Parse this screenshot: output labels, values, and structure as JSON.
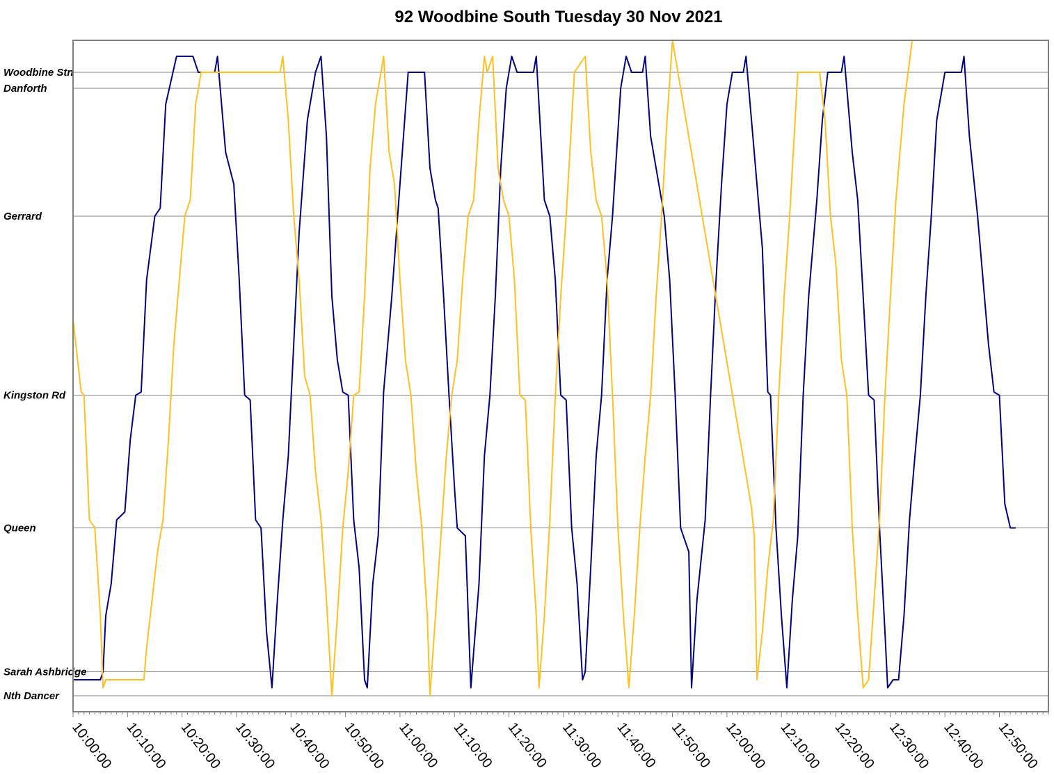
{
  "chart_data": {
    "type": "line",
    "title": "92 Woodbine South Tuesday 30 Nov 2021",
    "x_unit": "time of day",
    "xlim": [
      "10:00:00",
      "12:59:00"
    ],
    "x_ticks": [
      "10:00:00",
      "10:10:00",
      "10:20:00",
      "10:30:00",
      "10:40:00",
      "10:50:00",
      "11:00:00",
      "11:10:00",
      "11:20:00",
      "11:30:00",
      "11:40:00",
      "11:50:00",
      "12:00:00",
      "12:10:00",
      "12:20:00",
      "12:30:00",
      "12:40:00",
      "12:50:00"
    ],
    "y_ticks": [
      {
        "label": "Woodbine Stn",
        "value": 3.9
      },
      {
        "label": "Danforth",
        "value": 3.8
      },
      {
        "label": "Gerrard",
        "value": 3.0
      },
      {
        "label": "Kingston Rd",
        "value": 1.88
      },
      {
        "label": "Queen",
        "value": 1.05
      },
      {
        "label": "Sarah Ashbridge",
        "value": 0.15
      },
      {
        "label": "Nth Dancer",
        "value": 0.0
      }
    ],
    "ylim": [
      -0.1,
      4.1
    ],
    "grid": true,
    "legend": "none",
    "series": [
      {
        "color": "#000080",
        "points": [
          [
            "10:00:00",
            0.1
          ],
          [
            "10:05:00",
            0.1
          ],
          [
            "10:05:30",
            0.15
          ],
          [
            "10:06:00",
            0.5
          ],
          [
            "10:07:00",
            0.7
          ],
          [
            "10:08:00",
            1.1
          ],
          [
            "10:09:30",
            1.15
          ],
          [
            "10:10:30",
            1.6
          ],
          [
            "10:11:30",
            1.88
          ],
          [
            "10:12:30",
            1.9
          ],
          [
            "10:13:30",
            2.6
          ],
          [
            "10:15:00",
            3.0
          ],
          [
            "10:16:00",
            3.05
          ],
          [
            "10:17:00",
            3.7
          ],
          [
            "10:19:00",
            4.0
          ],
          [
            "10:22:00",
            4.0
          ],
          [
            "10:23:00",
            3.9
          ],
          [
            "10:26:00",
            3.9
          ],
          [
            "10:26:30",
            4.0
          ],
          [
            "10:28:00",
            3.4
          ],
          [
            "10:29:30",
            3.2
          ],
          [
            "10:30:30",
            2.6
          ],
          [
            "10:31:30",
            1.88
          ],
          [
            "10:32:30",
            1.85
          ],
          [
            "10:33:30",
            1.1
          ],
          [
            "10:34:30",
            1.05
          ],
          [
            "10:35:30",
            0.4
          ],
          [
            "10:36:30",
            0.05
          ],
          [
            "10:37:30",
            0.6
          ],
          [
            "10:38:30",
            1.1
          ],
          [
            "10:39:30",
            1.5
          ],
          [
            "10:40:30",
            2.2
          ],
          [
            "10:41:30",
            2.9
          ],
          [
            "10:43:00",
            3.6
          ],
          [
            "10:44:30",
            3.9
          ],
          [
            "10:45:30",
            4.0
          ],
          [
            "10:46:30",
            3.5
          ],
          [
            "10:47:30",
            2.5
          ],
          [
            "10:48:30",
            2.1
          ],
          [
            "10:49:30",
            1.9
          ],
          [
            "10:50:30",
            1.88
          ],
          [
            "10:51:30",
            1.1
          ],
          [
            "10:52:30",
            0.8
          ],
          [
            "10:53:30",
            0.1
          ],
          [
            "10:54:00",
            0.05
          ],
          [
            "10:55:00",
            0.7
          ],
          [
            "10:56:00",
            1.0
          ],
          [
            "10:57:00",
            1.9
          ],
          [
            "10:58:30",
            2.5
          ],
          [
            "11:00:00",
            3.2
          ],
          [
            "11:01:30",
            3.9
          ],
          [
            "11:04:30",
            3.9
          ],
          [
            "11:05:30",
            3.3
          ],
          [
            "11:06:30",
            3.1
          ],
          [
            "11:07:00",
            3.05
          ],
          [
            "11:08:00",
            2.5
          ],
          [
            "11:09:00",
            1.88
          ],
          [
            "11:10:00",
            1.3
          ],
          [
            "11:10:30",
            1.05
          ],
          [
            "11:12:00",
            1.0
          ],
          [
            "11:13:00",
            0.05
          ],
          [
            "11:14:30",
            0.7
          ],
          [
            "11:15:30",
            1.5
          ],
          [
            "11:16:30",
            1.88
          ],
          [
            "11:17:30",
            2.5
          ],
          [
            "11:18:30",
            3.3
          ],
          [
            "11:19:30",
            3.8
          ],
          [
            "11:20:30",
            4.0
          ],
          [
            "11:21:30",
            3.9
          ],
          [
            "11:24:30",
            3.9
          ],
          [
            "11:25:00",
            4.0
          ],
          [
            "11:26:30",
            3.1
          ],
          [
            "11:27:30",
            3.0
          ],
          [
            "11:28:30",
            2.6
          ],
          [
            "11:29:30",
            1.88
          ],
          [
            "11:30:30",
            1.85
          ],
          [
            "11:31:30",
            1.05
          ],
          [
            "11:32:30",
            0.7
          ],
          [
            "11:33:30",
            0.1
          ],
          [
            "11:34:00",
            0.15
          ],
          [
            "11:35:00",
            0.8
          ],
          [
            "11:36:00",
            1.5
          ],
          [
            "11:37:00",
            1.88
          ],
          [
            "11:38:00",
            2.6
          ],
          [
            "11:39:00",
            3.0
          ],
          [
            "11:40:30",
            3.8
          ],
          [
            "11:41:30",
            4.0
          ],
          [
            "11:42:30",
            3.9
          ],
          [
            "11:44:30",
            3.9
          ],
          [
            "11:45:00",
            4.0
          ],
          [
            "11:46:00",
            3.5
          ],
          [
            "11:47:30",
            3.2
          ],
          [
            "11:48:30",
            3.0
          ],
          [
            "11:49:30",
            2.6
          ],
          [
            "11:50:30",
            1.88
          ],
          [
            "11:51:30",
            1.05
          ],
          [
            "11:53:00",
            0.9
          ],
          [
            "11:53:30",
            0.05
          ],
          [
            "11:54:30",
            0.6
          ],
          [
            "11:56:00",
            1.1
          ],
          [
            "11:57:00",
            1.88
          ],
          [
            "11:58:00",
            2.6
          ],
          [
            "11:59:00",
            3.2
          ],
          [
            "12:00:00",
            3.7
          ],
          [
            "12:00:30",
            3.8
          ],
          [
            "12:01:00",
            3.9
          ],
          [
            "12:03:00",
            3.9
          ],
          [
            "12:03:30",
            4.0
          ],
          [
            "12:05:00",
            3.4
          ],
          [
            "12:06:30",
            2.8
          ],
          [
            "12:07:30",
            1.9
          ],
          [
            "12:08:00",
            1.88
          ],
          [
            "12:09:00",
            1.05
          ],
          [
            "12:10:00",
            0.5
          ],
          [
            "12:11:00",
            0.05
          ],
          [
            "12:12:00",
            0.6
          ],
          [
            "12:13:00",
            1.0
          ],
          [
            "12:14:00",
            1.88
          ],
          [
            "12:15:00",
            2.5
          ],
          [
            "12:16:30",
            3.1
          ],
          [
            "12:17:30",
            3.6
          ],
          [
            "12:18:30",
            3.9
          ],
          [
            "12:21:00",
            3.9
          ],
          [
            "12:21:30",
            4.0
          ],
          [
            "12:23:00",
            3.4
          ],
          [
            "12:24:00",
            3.1
          ],
          [
            "12:25:00",
            2.5
          ],
          [
            "12:26:00",
            1.88
          ],
          [
            "12:27:00",
            1.85
          ],
          [
            "12:28:00",
            1.05
          ],
          [
            "12:29:00",
            0.4
          ],
          [
            "12:29:30",
            0.05
          ],
          [
            "12:30:30",
            0.1
          ],
          [
            "12:31:30",
            0.1
          ],
          [
            "12:32:30",
            0.5
          ],
          [
            "12:33:30",
            1.1
          ],
          [
            "12:34:30",
            1.5
          ],
          [
            "12:35:30",
            1.88
          ],
          [
            "12:36:30",
            2.5
          ],
          [
            "12:37:30",
            3.0
          ],
          [
            "12:38:30",
            3.6
          ],
          [
            "12:40:00",
            3.9
          ],
          [
            "12:43:00",
            3.9
          ],
          [
            "12:43:30",
            4.0
          ],
          [
            "12:44:30",
            3.5
          ],
          [
            "12:46:00",
            3.0
          ],
          [
            "12:47:00",
            2.6
          ],
          [
            "12:48:00",
            2.2
          ],
          [
            "12:49:00",
            1.9
          ],
          [
            "12:50:00",
            1.88
          ],
          [
            "12:51:00",
            1.2
          ],
          [
            "12:52:00",
            1.05
          ],
          [
            "12:53:00",
            1.05
          ]
        ]
      },
      {
        "color": "#FFC020",
        "points": [
          [
            "10:00:00",
            2.35
          ],
          [
            "10:00:30",
            2.2
          ],
          [
            "10:01:30",
            1.9
          ],
          [
            "10:02:00",
            1.88
          ],
          [
            "10:03:00",
            1.1
          ],
          [
            "10:04:00",
            1.05
          ],
          [
            "10:05:00",
            0.5
          ],
          [
            "10:05:30",
            0.05
          ],
          [
            "10:06:00",
            0.1
          ],
          [
            "10:13:00",
            0.1
          ],
          [
            "10:13:30",
            0.3
          ],
          [
            "10:14:30",
            0.6
          ],
          [
            "10:15:30",
            0.9
          ],
          [
            "10:16:30",
            1.1
          ],
          [
            "10:17:30",
            1.6
          ],
          [
            "10:18:30",
            2.2
          ],
          [
            "10:19:30",
            2.6
          ],
          [
            "10:20:30",
            3.0
          ],
          [
            "10:21:30",
            3.1
          ],
          [
            "10:22:30",
            3.7
          ],
          [
            "10:23:30",
            3.9
          ],
          [
            "10:38:00",
            3.9
          ],
          [
            "10:38:30",
            4.0
          ],
          [
            "10:39:30",
            3.6
          ],
          [
            "10:40:30",
            3.0
          ],
          [
            "10:41:30",
            2.6
          ],
          [
            "10:42:30",
            2.0
          ],
          [
            "10:43:30",
            1.88
          ],
          [
            "10:44:30",
            1.4
          ],
          [
            "10:45:30",
            1.1
          ],
          [
            "10:46:30",
            0.6
          ],
          [
            "10:47:30",
            0.0
          ],
          [
            "10:48:30",
            0.5
          ],
          [
            "10:49:30",
            1.05
          ],
          [
            "10:50:30",
            1.4
          ],
          [
            "10:51:30",
            1.88
          ],
          [
            "10:52:30",
            1.9
          ],
          [
            "10:53:30",
            2.5
          ],
          [
            "10:54:30",
            3.3
          ],
          [
            "10:55:30",
            3.7
          ],
          [
            "10:56:30",
            3.9
          ],
          [
            "10:57:00",
            4.0
          ],
          [
            "10:58:00",
            3.4
          ],
          [
            "10:59:00",
            3.2
          ],
          [
            "11:00:00",
            2.6
          ],
          [
            "11:01:00",
            2.1
          ],
          [
            "11:02:00",
            1.88
          ],
          [
            "11:03:00",
            1.4
          ],
          [
            "11:04:00",
            1.05
          ],
          [
            "11:05:00",
            0.5
          ],
          [
            "11:05:30",
            0.0
          ],
          [
            "11:06:30",
            0.5
          ],
          [
            "11:07:30",
            1.0
          ],
          [
            "11:08:30",
            1.5
          ],
          [
            "11:09:30",
            1.88
          ],
          [
            "11:10:30",
            2.1
          ],
          [
            "11:11:30",
            2.6
          ],
          [
            "11:12:30",
            3.0
          ],
          [
            "11:13:30",
            3.1
          ],
          [
            "11:14:30",
            3.6
          ],
          [
            "11:15:30",
            4.0
          ],
          [
            "11:16:00",
            3.9
          ],
          [
            "11:17:00",
            4.0
          ],
          [
            "11:18:00",
            3.3
          ],
          [
            "11:19:00",
            3.1
          ],
          [
            "11:20:00",
            3.0
          ],
          [
            "11:21:00",
            2.6
          ],
          [
            "11:22:00",
            1.88
          ],
          [
            "11:23:00",
            1.85
          ],
          [
            "11:24:00",
            1.05
          ],
          [
            "11:25:00",
            0.5
          ],
          [
            "11:25:30",
            0.05
          ],
          [
            "11:26:30",
            0.5
          ],
          [
            "11:27:30",
            1.1
          ],
          [
            "11:28:30",
            1.88
          ],
          [
            "11:29:30",
            2.5
          ],
          [
            "11:30:30",
            3.0
          ],
          [
            "11:31:30",
            3.6
          ],
          [
            "11:32:00",
            3.9
          ],
          [
            "11:34:00",
            4.0
          ],
          [
            "11:35:00",
            3.4
          ],
          [
            "11:36:00",
            3.1
          ],
          [
            "11:37:00",
            3.0
          ],
          [
            "11:38:00",
            2.6
          ],
          [
            "11:39:00",
            1.88
          ],
          [
            "11:40:00",
            1.05
          ],
          [
            "11:41:00",
            0.5
          ],
          [
            "11:42:00",
            0.05
          ],
          [
            "11:43:00",
            0.5
          ],
          [
            "11:44:00",
            1.05
          ],
          [
            "11:45:00",
            1.5
          ],
          [
            "11:46:00",
            1.88
          ],
          [
            "11:47:00",
            2.5
          ],
          [
            "11:48:00",
            3.0
          ],
          [
            "11:49:00",
            3.6
          ],
          [
            "11:50:00",
            4.1
          ],
          [
            "12:04:30",
            1.18
          ],
          [
            "12:05:00",
            1.0
          ],
          [
            "12:05:30",
            0.1
          ],
          [
            "12:06:30",
            0.4
          ],
          [
            "12:07:30",
            0.8
          ],
          [
            "12:08:30",
            1.1
          ],
          [
            "12:09:30",
            1.88
          ],
          [
            "12:10:30",
            2.5
          ],
          [
            "12:11:30",
            3.0
          ],
          [
            "12:12:30",
            3.6
          ],
          [
            "12:13:00",
            3.9
          ],
          [
            "12:17:00",
            3.9
          ],
          [
            "12:18:00",
            3.6
          ],
          [
            "12:19:00",
            3.0
          ],
          [
            "12:20:00",
            2.7
          ],
          [
            "12:21:00",
            2.1
          ],
          [
            "12:22:00",
            1.88
          ],
          [
            "12:23:00",
            1.05
          ],
          [
            "12:24:00",
            0.5
          ],
          [
            "12:25:00",
            0.05
          ],
          [
            "12:26:00",
            0.1
          ],
          [
            "12:27:00",
            0.6
          ],
          [
            "12:28:00",
            1.1
          ],
          [
            "12:29:00",
            1.88
          ],
          [
            "12:30:00",
            2.5
          ],
          [
            "12:31:00",
            3.1
          ],
          [
            "12:32:30",
            3.7
          ],
          [
            "12:34:00",
            4.1
          ]
        ]
      }
    ]
  }
}
